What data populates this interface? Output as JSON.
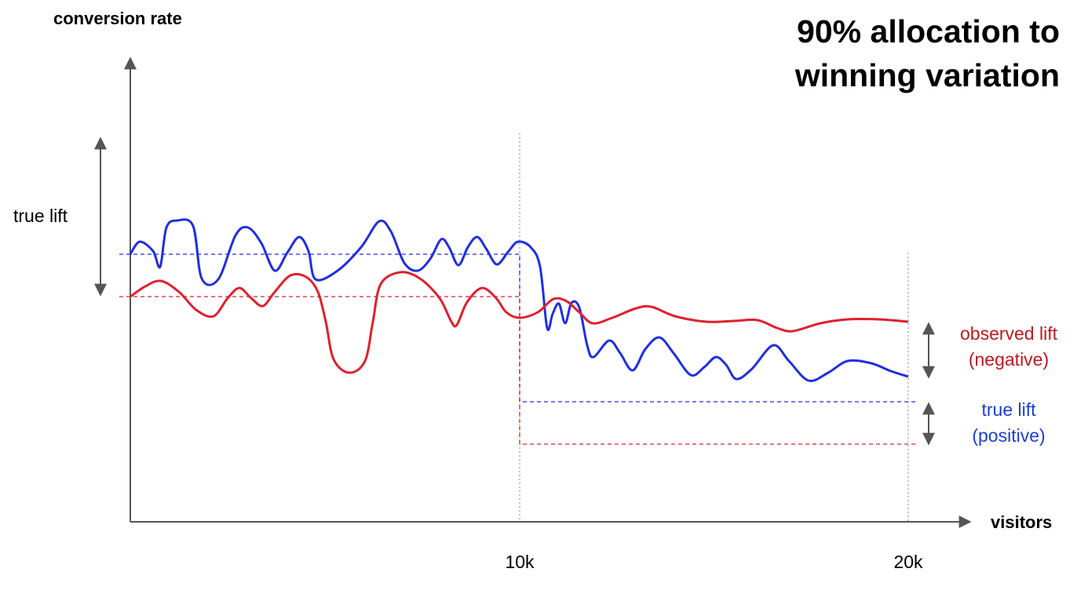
{
  "title_lines": [
    "90% allocation to",
    "winning variation"
  ],
  "y_axis_label": "conversion rate",
  "x_axis_label": "visitors",
  "x_ticks": [
    "10k",
    "20k"
  ],
  "annotations": {
    "left_lift": "true lift",
    "observed": [
      "observed lift",
      "(negative)"
    ],
    "true": [
      "true lift",
      "(positive)"
    ]
  }
}
